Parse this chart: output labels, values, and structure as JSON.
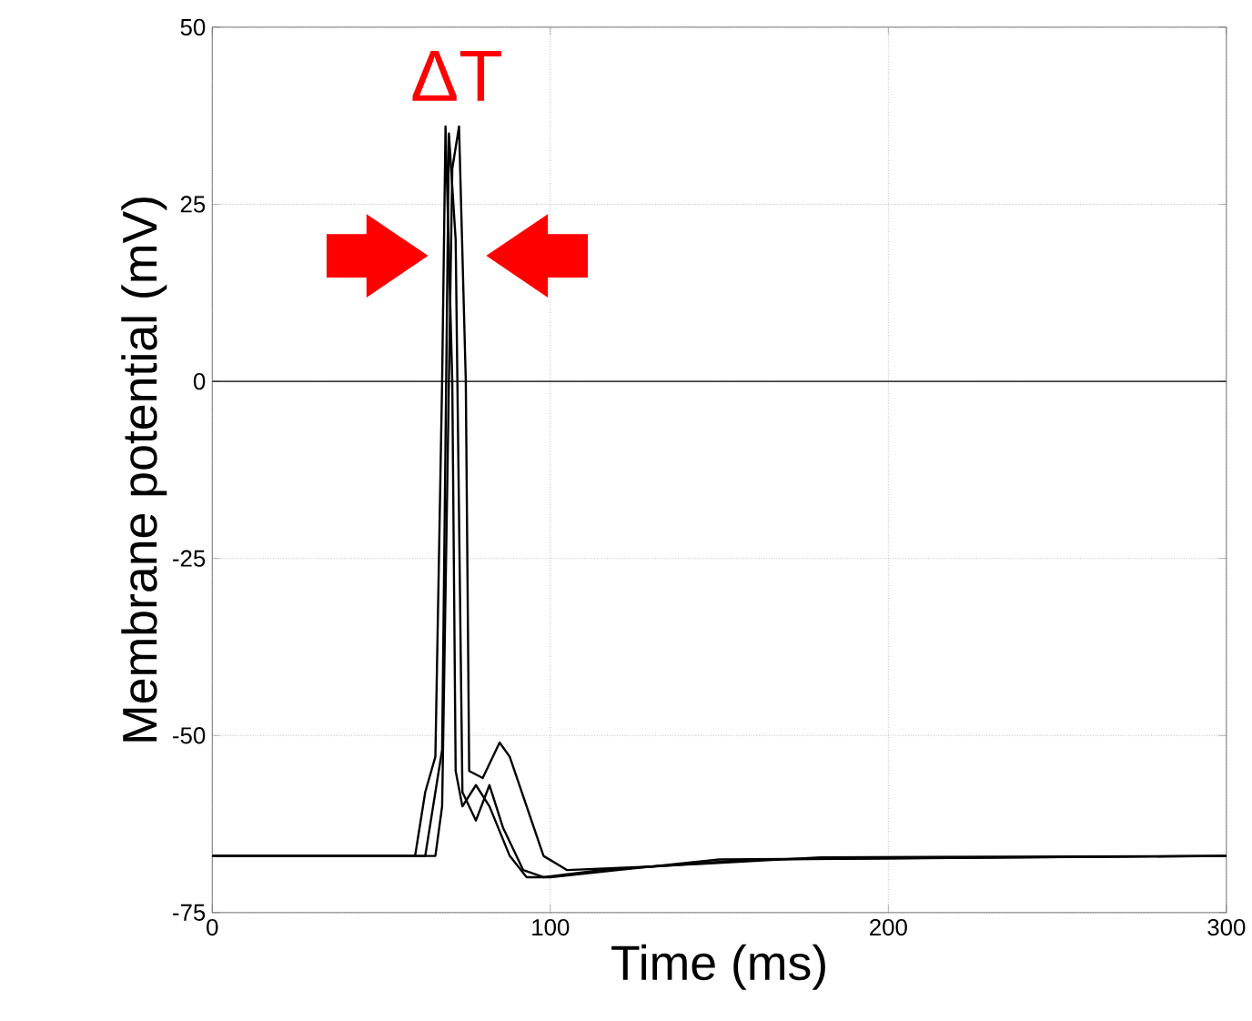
{
  "chart_data": {
    "type": "line",
    "xlabel": "Time (ms)",
    "ylabel": "Membrane potential (mV)",
    "annotations": [
      "ΔT"
    ],
    "xlim": [
      0,
      300
    ],
    "xticks": [
      0,
      100,
      200,
      300
    ],
    "ylim": [
      -75,
      50
    ],
    "yticks": [
      -75,
      -50,
      -25,
      0,
      25,
      50
    ],
    "grid": true,
    "marker": "none",
    "line_style": "solid",
    "ref_lines": [
      {
        "axis": "y",
        "value": 0,
        "color": "#000000"
      }
    ],
    "series": [
      {
        "color": "#000000",
        "x": [
          0,
          60,
          63,
          66,
          68,
          69,
          71,
          72,
          74,
          78,
          82,
          88,
          93,
          100,
          120,
          150,
          300
        ],
        "values": [
          -67,
          -67,
          -58,
          -53,
          0,
          36,
          0,
          -55,
          -60,
          -57,
          -60,
          -67,
          -70,
          -70,
          -69,
          -67.5,
          -67
        ]
      },
      {
        "color": "#000000",
        "x": [
          0,
          63,
          66,
          68,
          70,
          72,
          74,
          78,
          82,
          86,
          92,
          98,
          115,
          160,
          300
        ],
        "values": [
          -67,
          -67,
          -58,
          -52,
          35,
          20,
          -58,
          -62,
          -57,
          -63,
          -69,
          -70,
          -69,
          -67.5,
          -67
        ]
      },
      {
        "color": "#000000",
        "x": [
          0,
          66,
          68,
          71,
          73,
          75,
          76,
          80,
          85,
          88,
          93,
          98,
          105,
          130,
          180,
          300
        ],
        "values": [
          -67,
          -67,
          -60,
          30,
          36,
          0,
          -55,
          -56,
          -51,
          -53,
          -60,
          -67,
          -69,
          -68.5,
          -67.2,
          -67
        ]
      }
    ]
  }
}
